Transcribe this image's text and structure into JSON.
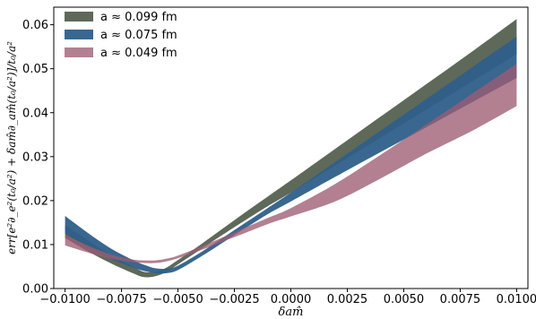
{
  "chart_data": {
    "type": "area",
    "xlabel": "δam̂",
    "ylabel": "err[e²∂_e²(t₀/a²) + δam̂∂_am̂(t₀/a²)]/t₀/a²",
    "xlim": [
      -0.0105,
      0.0105
    ],
    "ylim": [
      0.0,
      0.064
    ],
    "x_ticks": [
      -0.01,
      -0.0075,
      -0.005,
      -0.0025,
      0.0,
      0.0025,
      0.005,
      0.0075,
      0.01
    ],
    "x_tick_labels": [
      "−0.0100",
      "−0.0075",
      "−0.0050",
      "−0.0025",
      "0.0000",
      "0.0025",
      "0.0050",
      "0.0075",
      "0.0100"
    ],
    "y_ticks": [
      0.0,
      0.01,
      0.02,
      0.03,
      0.04,
      0.05,
      0.06
    ],
    "y_tick_labels": [
      "0.00",
      "0.01",
      "0.02",
      "0.03",
      "0.04",
      "0.05",
      "0.06"
    ],
    "grid": false,
    "legend_position": "top-left",
    "x": [
      -0.01,
      -0.009,
      -0.008,
      -0.007,
      -0.0065,
      -0.006,
      -0.0055,
      -0.005,
      -0.004,
      -0.003,
      -0.002,
      -0.001,
      0.0,
      0.002,
      0.004,
      0.006,
      0.008,
      0.01
    ],
    "series": [
      {
        "name": "a ≈ 0.099 fm",
        "color": "#5b6657",
        "lower": [
          0.0115,
          0.0085,
          0.0058,
          0.0035,
          0.0026,
          0.0028,
          0.0038,
          0.0055,
          0.0089,
          0.0123,
          0.0156,
          0.0188,
          0.0218,
          0.0281,
          0.0344,
          0.0407,
          0.047,
          0.0533
        ],
        "upper": [
          0.0145,
          0.011,
          0.0077,
          0.005,
          0.0038,
          0.0038,
          0.0048,
          0.0065,
          0.01,
          0.0137,
          0.0174,
          0.021,
          0.0246,
          0.0319,
          0.0392,
          0.0465,
          0.0538,
          0.0613
        ]
      },
      {
        "name": "a ≈ 0.075 fm",
        "color": "#2e5f8a",
        "lower": [
          0.0125,
          0.0095,
          0.0068,
          0.0048,
          0.004,
          0.0035,
          0.0035,
          0.0042,
          0.0072,
          0.0105,
          0.0138,
          0.017,
          0.0198,
          0.0255,
          0.0311,
          0.0367,
          0.0423,
          0.0479
        ],
        "upper": [
          0.0165,
          0.0127,
          0.0092,
          0.0065,
          0.0054,
          0.0046,
          0.0045,
          0.0052,
          0.0082,
          0.0116,
          0.015,
          0.0184,
          0.0218,
          0.0289,
          0.036,
          0.0431,
          0.0502,
          0.0573
        ]
      },
      {
        "name": "a ≈ 0.049 fm",
        "color": "#9c5c72",
        "lower": [
          0.0098,
          0.0082,
          0.0068,
          0.006,
          0.0058,
          0.0058,
          0.0062,
          0.0069,
          0.0087,
          0.0107,
          0.0127,
          0.0147,
          0.0164,
          0.0199,
          0.0251,
          0.0307,
          0.0358,
          0.0415
        ],
        "upper": [
          0.0122,
          0.0098,
          0.0078,
          0.0066,
          0.0064,
          0.0064,
          0.0068,
          0.0075,
          0.0095,
          0.0117,
          0.0139,
          0.0161,
          0.0183,
          0.0239,
          0.0305,
          0.0373,
          0.0442,
          0.0511
        ]
      }
    ]
  }
}
